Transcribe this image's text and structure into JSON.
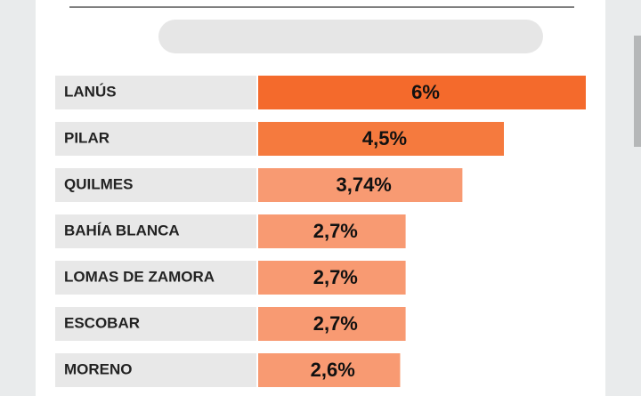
{
  "chart_data": {
    "type": "bar",
    "orientation": "horizontal",
    "categories": [
      "LANÚS",
      "PILAR",
      "QUILMES",
      "BAHÍA BLANCA",
      "LOMAS DE ZAMORA",
      "ESCOBAR",
      "MORENO"
    ],
    "values": [
      6,
      4.5,
      3.74,
      2.7,
      2.7,
      2.7,
      2.6
    ],
    "value_labels": [
      "6%",
      "4,5%",
      "3,74%",
      "2,7%",
      "2,7%",
      "2,7%",
      "2,6%"
    ],
    "colors": [
      "#f46a2c",
      "#f57a3e",
      "#f89a72",
      "#f89a72",
      "#f89a72",
      "#f89a72",
      "#f89a72"
    ]
  }
}
